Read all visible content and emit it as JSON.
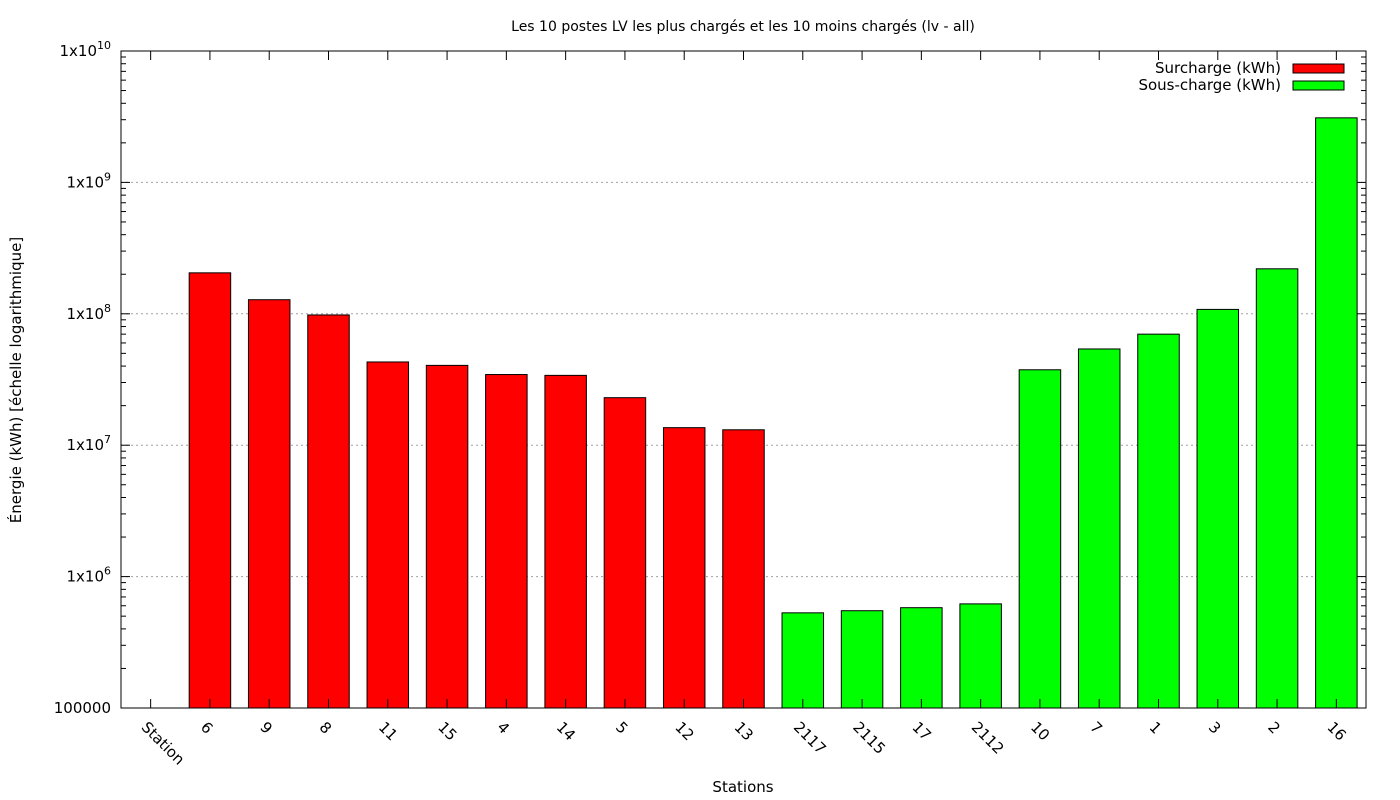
{
  "chart_data": {
    "type": "bar",
    "title": "Les 10 postes LV les plus chargés et les 10 moins chargés (lv - all)",
    "xlabel": "Stations",
    "ylabel": "Énergie (kWh) [échelle logarithmique]",
    "yscale": "log",
    "ylim": [
      100000,
      10000000000
    ],
    "y_ticks": [
      {
        "value": 100000,
        "label": "100000"
      },
      {
        "value": 1000000,
        "base": "1x10",
        "exp": "6"
      },
      {
        "value": 10000000,
        "base": "1x10",
        "exp": "7"
      },
      {
        "value": 100000000,
        "base": "1x10",
        "exp": "8"
      },
      {
        "value": 1000000000,
        "base": "1x10",
        "exp": "9"
      },
      {
        "value": 10000000000,
        "base": "1x10",
        "exp": "10"
      }
    ],
    "grid": "horizontal dotted",
    "legend_position": "top-right",
    "categories": [
      "Station",
      "6",
      "9",
      "8",
      "11",
      "15",
      "4",
      "14",
      "5",
      "12",
      "13",
      "2117",
      "2115",
      "17",
      "2112",
      "10",
      "7",
      "1",
      "3",
      "2",
      "16"
    ],
    "series": [
      {
        "name": "Surcharge (kWh)",
        "color": "#ff0000",
        "values": [
          null,
          205000000,
          128000000,
          98000000,
          43000000,
          40500000,
          34500000,
          34000000,
          23000000,
          13600000,
          13100000,
          null,
          null,
          null,
          null,
          null,
          null,
          null,
          null,
          null,
          null
        ]
      },
      {
        "name": "Sous-charge (kWh)",
        "color": "#00ff00",
        "values": [
          null,
          null,
          null,
          null,
          null,
          null,
          null,
          null,
          null,
          null,
          null,
          530000,
          550000,
          580000,
          620000,
          37500000,
          54000000,
          70000000,
          108000000,
          220000000,
          3100000000
        ]
      }
    ]
  }
}
